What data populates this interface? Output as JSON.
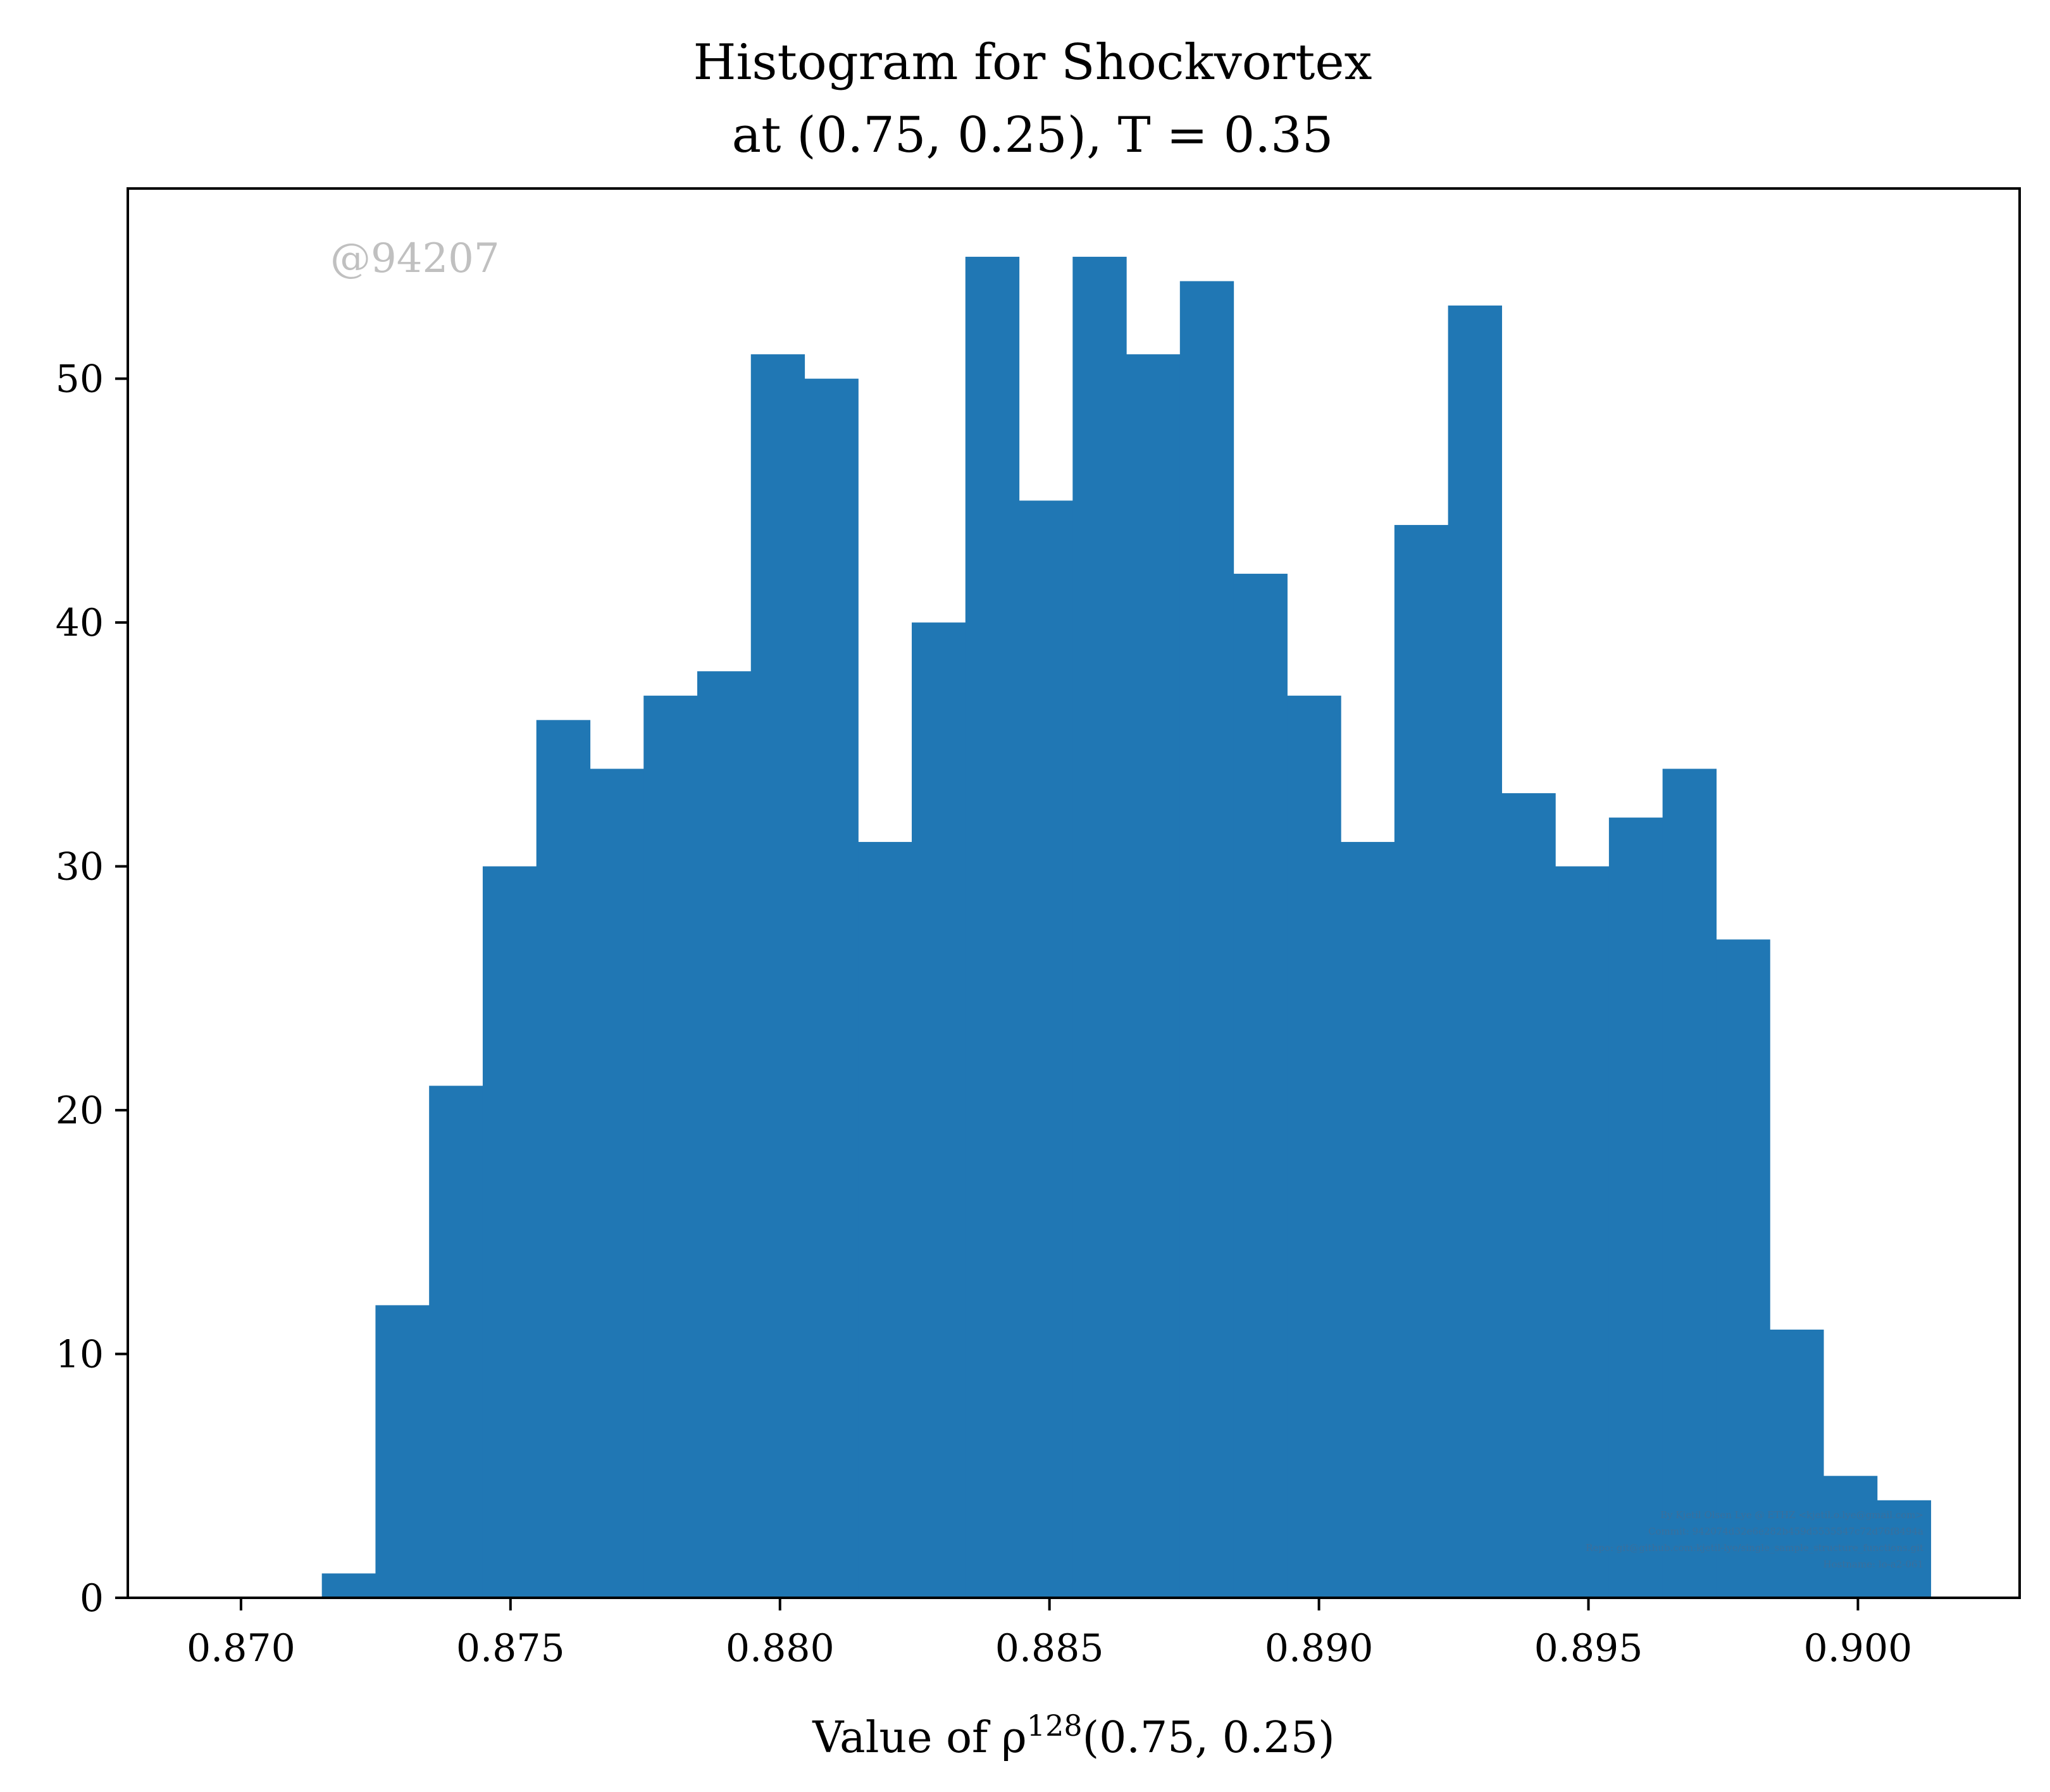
{
  "chart_data": {
    "type": "bar",
    "title": "Histogram for Shockvortex",
    "subtitle": "at (0.75, 0.25), T = 0.35",
    "xlabel": "Value of ρ128(0.75, 0.25)",
    "xlabel_parts": {
      "prefix": "Value of ρ",
      "superscript": "128",
      "suffix": "(0.75, 0.25)"
    },
    "ylabel": "",
    "xlim": [
      0.8679,
      0.903
    ],
    "ylim": [
      0,
      57.8
    ],
    "xticks": [
      0.87,
      0.875,
      0.88,
      0.885,
      0.89,
      0.895,
      0.9
    ],
    "xtick_labels": [
      "0.870",
      "0.875",
      "0.880",
      "0.885",
      "0.890",
      "0.895",
      "0.900"
    ],
    "yticks": [
      0,
      10,
      20,
      30,
      40,
      50
    ],
    "ytick_labels": [
      "0",
      "10",
      "20",
      "30",
      "40",
      "50"
    ],
    "bin_start": 0.8715,
    "bin_width": 0.000995,
    "values": [
      1,
      12,
      21,
      30,
      36,
      34,
      37,
      38,
      51,
      50,
      31,
      40,
      55,
      45,
      55,
      51,
      54,
      42,
      37,
      31,
      44,
      53,
      33,
      30,
      32,
      34,
      27,
      11,
      5,
      4
    ],
    "color": "#2077b4",
    "grid": false,
    "legend": "none",
    "watermark": "@94207",
    "credits": [
      "By Kjetil Olsen Lye @ ETHZ <kjetil.o.lye@gmail.com>",
      "Commit: 942074d32e6e282b459d5535547c72d76f8494a",
      "Repo: git@github.com:kjetil-lye/single_sample_structure_functions.git",
      "Hostname: lo-a2-061"
    ]
  }
}
